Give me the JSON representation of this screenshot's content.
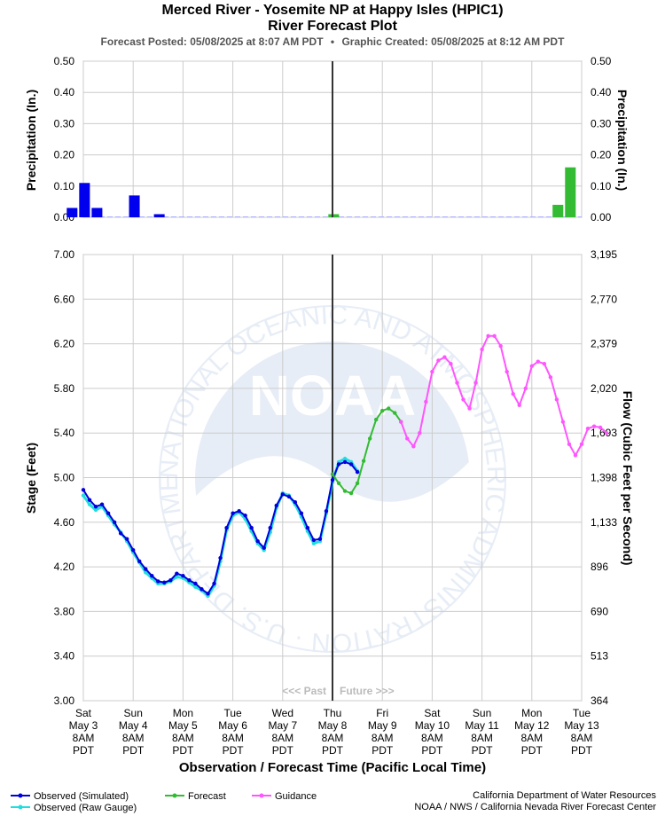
{
  "header": {
    "title": "Merced River - Yosemite NP at Happy Isles (HPIC1)",
    "subtitle": "River Forecast Plot",
    "posted": "Forecast Posted: 05/08/2025 at 8:07 AM PDT",
    "separator": "•",
    "created": "Graphic Created: 05/08/2025 at 8:12 AM PDT"
  },
  "watermark": {
    "logo": "NOAA",
    "ring_text": "NATIONAL OCEANIC AND ATMOSPHERIC ADMINISTRATION · U.S. DEPARTMENT OF COMMERCE"
  },
  "footer": {
    "credit_line1": "California Department of Water Resources",
    "credit_line2": "NOAA / NWS / California Nevada River Forecast Center"
  },
  "chart_data": [
    {
      "type": "bar",
      "title": "",
      "ylabel": "Precipitation (In.)",
      "ylabel_right": "Precipitation (In.)",
      "ylim": [
        0,
        0.5
      ],
      "yticks": [
        "0.00",
        "0.10",
        "0.20",
        "0.30",
        "0.40",
        "0.50"
      ],
      "unit_hours": 6,
      "series": [
        {
          "name": "Observed",
          "color": "#0000ee",
          "points": [
            {
              "x": "May 3 00:00",
              "y": 0.03
            },
            {
              "x": "May 3 06:00",
              "y": 0.11
            },
            {
              "x": "May 3 12:00",
              "y": 0.03
            },
            {
              "x": "May 4 06:00",
              "y": 0.07
            },
            {
              "x": "May 4 18:00",
              "y": 0.01
            }
          ]
        },
        {
          "name": "Forecast",
          "color": "#33bb33",
          "points": [
            {
              "x": "May 8 06:00",
              "y": 0.01
            },
            {
              "x": "May 12 18:00",
              "y": 0.04
            },
            {
              "x": "May 13 00:00",
              "y": 0.16
            }
          ]
        }
      ]
    },
    {
      "type": "line",
      "title": "",
      "xlabel": "Observation / Forecast Time (Pacific Local Time)",
      "ylabel": "Stage (Feet)",
      "ylabel_right": "Flow (Cubic Feet per Second)",
      "ylim": [
        3.0,
        7.0
      ],
      "yticks": [
        "3.00",
        "3.40",
        "3.80",
        "4.20",
        "4.60",
        "5.00",
        "5.40",
        "5.80",
        "6.20",
        "6.60",
        "7.00"
      ],
      "yticks_right": [
        "364",
        "513",
        "690",
        "896",
        "1,133",
        "1,398",
        "1,693",
        "2,020",
        "2,379",
        "2,770",
        "3,195"
      ],
      "grid": true,
      "past_label": "<<< Past",
      "future_label": "Future >>>",
      "now_marker": "Thu May 8 8AM PDT",
      "x_ticks": [
        {
          "day": "Sat",
          "date": "May 3",
          "time": "8AM",
          "tz": "PDT"
        },
        {
          "day": "Sun",
          "date": "May 4",
          "time": "8AM",
          "tz": "PDT"
        },
        {
          "day": "Mon",
          "date": "May 5",
          "time": "8AM",
          "tz": "PDT"
        },
        {
          "day": "Tue",
          "date": "May 6",
          "time": "8AM",
          "tz": "PDT"
        },
        {
          "day": "Wed",
          "date": "May 7",
          "time": "8AM",
          "tz": "PDT"
        },
        {
          "day": "Thu",
          "date": "May 8",
          "time": "8AM",
          "tz": "PDT"
        },
        {
          "day": "Fri",
          "date": "May 9",
          "time": "8AM",
          "tz": "PDT"
        },
        {
          "day": "Sat",
          "date": "May 10",
          "time": "8AM",
          "tz": "PDT"
        },
        {
          "day": "Sun",
          "date": "May 11",
          "time": "8AM",
          "tz": "PDT"
        },
        {
          "day": "Mon",
          "date": "May 12",
          "time": "8AM",
          "tz": "PDT"
        },
        {
          "day": "Tue",
          "date": "May 13",
          "time": "8AM",
          "tz": "PDT"
        }
      ],
      "x_unit": "hours from Sat May 3 8AM PDT",
      "series": [
        {
          "name": "Observed (Simulated)",
          "color": "#0000dd",
          "points": [
            [
              0,
              4.89
            ],
            [
              3,
              4.8
            ],
            [
              6,
              4.74
            ],
            [
              9,
              4.76
            ],
            [
              12,
              4.68
            ],
            [
              15,
              4.6
            ],
            [
              18,
              4.5
            ],
            [
              21,
              4.45
            ],
            [
              24,
              4.35
            ],
            [
              27,
              4.25
            ],
            [
              30,
              4.18
            ],
            [
              33,
              4.12
            ],
            [
              36,
              4.07
            ],
            [
              39,
              4.06
            ],
            [
              42,
              4.08
            ],
            [
              45,
              4.14
            ],
            [
              48,
              4.12
            ],
            [
              51,
              4.08
            ],
            [
              54,
              4.05
            ],
            [
              57,
              4.0
            ],
            [
              60,
              3.96
            ],
            [
              63,
              4.05
            ],
            [
              66,
              4.28
            ],
            [
              69,
              4.55
            ],
            [
              72,
              4.68
            ],
            [
              75,
              4.7
            ],
            [
              78,
              4.66
            ],
            [
              81,
              4.55
            ],
            [
              84,
              4.43
            ],
            [
              87,
              4.37
            ],
            [
              90,
              4.55
            ],
            [
              93,
              4.75
            ],
            [
              96,
              4.85
            ],
            [
              99,
              4.83
            ],
            [
              102,
              4.78
            ],
            [
              105,
              4.68
            ],
            [
              108,
              4.55
            ],
            [
              111,
              4.44
            ],
            [
              114,
              4.45
            ],
            [
              117,
              4.7
            ],
            [
              120,
              4.98
            ],
            [
              123,
              5.12
            ],
            [
              126,
              5.14
            ],
            [
              129,
              5.12
            ],
            [
              132,
              5.05
            ]
          ]
        },
        {
          "name": "Observed (Raw Gauge)",
          "color": "#22dddd",
          "points": [
            [
              0,
              4.84
            ],
            [
              3,
              4.76
            ],
            [
              6,
              4.71
            ],
            [
              9,
              4.74
            ],
            [
              12,
              4.66
            ],
            [
              15,
              4.58
            ],
            [
              18,
              4.51
            ],
            [
              21,
              4.43
            ],
            [
              24,
              4.33
            ],
            [
              27,
              4.24
            ],
            [
              30,
              4.15
            ],
            [
              33,
              4.1
            ],
            [
              36,
              4.05
            ],
            [
              39,
              4.05
            ],
            [
              42,
              4.07
            ],
            [
              45,
              4.11
            ],
            [
              48,
              4.1
            ],
            [
              51,
              4.06
            ],
            [
              54,
              4.02
            ],
            [
              57,
              3.99
            ],
            [
              60,
              3.94
            ],
            [
              63,
              4.03
            ],
            [
              66,
              4.25
            ],
            [
              69,
              4.53
            ],
            [
              72,
              4.66
            ],
            [
              75,
              4.69
            ],
            [
              78,
              4.63
            ],
            [
              81,
              4.52
            ],
            [
              84,
              4.41
            ],
            [
              87,
              4.35
            ],
            [
              90,
              4.51
            ],
            [
              93,
              4.73
            ],
            [
              96,
              4.86
            ],
            [
              99,
              4.84
            ],
            [
              102,
              4.76
            ],
            [
              105,
              4.65
            ],
            [
              108,
              4.52
            ],
            [
              111,
              4.41
            ],
            [
              114,
              4.43
            ],
            [
              117,
              4.68
            ],
            [
              120,
              4.96
            ],
            [
              123,
              5.14
            ],
            [
              126,
              5.17
            ],
            [
              129,
              5.14
            ],
            [
              132,
              5.06
            ]
          ]
        },
        {
          "name": "Forecast",
          "color": "#33bb33",
          "points": [
            [
              120,
              5.03
            ],
            [
              123,
              4.95
            ],
            [
              126,
              4.88
            ],
            [
              129,
              4.86
            ],
            [
              132,
              4.95
            ],
            [
              135,
              5.15
            ],
            [
              138,
              5.35
            ],
            [
              141,
              5.52
            ],
            [
              144,
              5.6
            ],
            [
              147,
              5.62
            ],
            [
              150,
              5.58
            ],
            [
              153,
              5.5
            ]
          ]
        },
        {
          "name": "Guidance",
          "color": "#ff55ff",
          "points": [
            [
              153,
              5.5
            ],
            [
              156,
              5.35
            ],
            [
              159,
              5.28
            ],
            [
              162,
              5.4
            ],
            [
              165,
              5.68
            ],
            [
              168,
              5.95
            ],
            [
              171,
              6.05
            ],
            [
              174,
              6.08
            ],
            [
              177,
              6.02
            ],
            [
              180,
              5.85
            ],
            [
              183,
              5.7
            ],
            [
              186,
              5.62
            ],
            [
              189,
              5.85
            ],
            [
              192,
              6.15
            ],
            [
              195,
              6.27
            ],
            [
              198,
              6.27
            ],
            [
              201,
              6.18
            ],
            [
              204,
              5.95
            ],
            [
              207,
              5.75
            ],
            [
              210,
              5.65
            ],
            [
              213,
              5.8
            ],
            [
              216,
              6.0
            ],
            [
              219,
              6.04
            ],
            [
              222,
              6.02
            ],
            [
              225,
              5.9
            ],
            [
              228,
              5.7
            ],
            [
              231,
              5.5
            ],
            [
              234,
              5.3
            ],
            [
              237,
              5.2
            ],
            [
              240,
              5.3
            ],
            [
              243,
              5.44
            ],
            [
              246,
              5.46
            ],
            [
              249,
              5.45
            ],
            [
              252,
              5.4
            ]
          ]
        }
      ]
    }
  ]
}
